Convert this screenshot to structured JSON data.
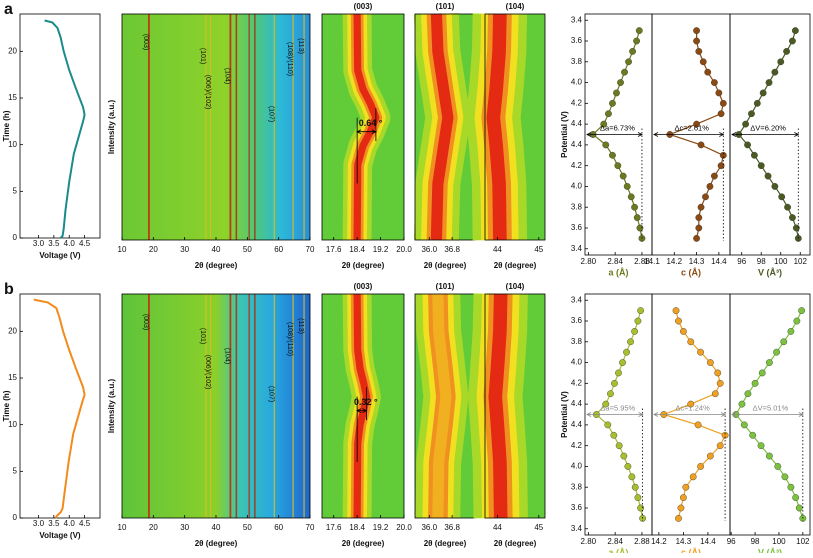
{
  "panel_labels": [
    "a",
    "b"
  ],
  "chart_data": [
    {
      "type": "line",
      "xlabel": "Voltage (V)",
      "ylabel": "Time (h)",
      "xlim": [
        2.4,
        5.0
      ],
      "ylim": [
        0,
        24
      ],
      "xticks": [
        {
          "value": 3,
          "label": "3.0"
        },
        3.5,
        {
          "value": 4,
          "label": "4.0"
        },
        4.5
      ],
      "yticks": [
        0,
        5,
        10,
        15,
        20
      ],
      "color": "#1b8a8a",
      "x": [
        3.72,
        3.78,
        3.82,
        3.88,
        4.0,
        4.15,
        4.32,
        4.45,
        4.5,
        4.45,
        4.22,
        4.0,
        3.82,
        3.72,
        3.62,
        3.45,
        3.2
      ],
      "values": [
        0,
        0.2,
        1,
        3,
        6,
        9,
        11,
        12.5,
        13.2,
        14,
        16,
        18,
        20,
        21.5,
        22.5,
        23.1,
        23.3
      ]
    },
    {
      "type": "heatmap",
      "xlabel": "2θ (degree)",
      "ylabel": "Intensity (a.u.)",
      "xlim": [
        10,
        70
      ],
      "xticks": [
        10,
        20,
        30,
        40,
        50,
        60,
        70
      ],
      "peaks": [
        {
          "label": "(003)",
          "x": 18.6
        },
        {
          "label": "(101)",
          "x": 36.8
        },
        {
          "label": "(006)/(102)",
          "x": 38.3
        },
        {
          "label": "(104)",
          "x": 44.6
        },
        {
          "label": "(107)",
          "x": 58.6
        },
        {
          "label": "(108)/(110)",
          "x": 64.6
        },
        {
          "label": "(113)",
          "x": 68.1
        }
      ]
    },
    {
      "type": "zoom",
      "title": "(003)",
      "xlabel": "2θ (degree)",
      "xlim": [
        17.2,
        20.0
      ],
      "xticks": [
        17.6,
        18.4,
        19.2,
        {
          "value": 20,
          "label": "20.0"
        }
      ],
      "ylim": [
        0,
        24
      ],
      "ridge_y": [
        0,
        8,
        10,
        11.5,
        13,
        14.5,
        16,
        18,
        24
      ],
      "ridge_x": [
        18.4,
        18.42,
        18.6,
        18.85,
        19.04,
        18.85,
        18.6,
        18.42,
        18.4
      ],
      "annotation": "0.64 °"
    },
    {
      "type": "zoom",
      "title": "(101)",
      "xlabel": "2θ (degree)",
      "xlim": [
        35.5,
        37.6
      ],
      "xticks": [
        {
          "value": 36,
          "label": "36.0"
        },
        36.8
      ],
      "ylim": [
        0,
        24
      ],
      "ridge_y": [
        0,
        6,
        10,
        13,
        16,
        20,
        24
      ],
      "ridge_x": [
        36.25,
        36.3,
        36.5,
        36.65,
        36.5,
        36.3,
        36.25
      ]
    },
    {
      "type": "zoom",
      "title": "(104)",
      "xlabel": "2θ (degree)",
      "xlim": [
        43.7,
        45.15
      ],
      "xticks": [
        44,
        45
      ],
      "ylim": [
        0,
        24
      ],
      "ridge_y": [
        0,
        6,
        10,
        13,
        16,
        20,
        24
      ],
      "ridge_x": [
        44.06,
        44.04,
        43.97,
        43.9,
        43.97,
        44.04,
        44.06
      ]
    },
    {
      "type": "lattice",
      "ylabel": "Potential (V)",
      "xlabel": "a (Å)",
      "xlim": [
        2.795,
        2.895
      ],
      "xticks": [
        {
          "value": 2.8,
          "label": "2.80"
        },
        2.84,
        2.88
      ],
      "ylim": [
        -0.3,
        11.3
      ],
      "yticks": [
        {
          "value": 11,
          "label": "3.4"
        },
        {
          "value": 10,
          "label": "3.6"
        },
        {
          "value": 9,
          "label": "3.8"
        },
        {
          "value": 8,
          "label": "4.0"
        },
        {
          "value": 7,
          "label": "4.2"
        },
        {
          "value": 6,
          "label": "4.4"
        },
        {
          "value": 5,
          "label": "4.4"
        },
        {
          "value": 4,
          "label": "4.2"
        },
        {
          "value": 3,
          "label": "4.0"
        },
        {
          "value": 2,
          "label": "3.8"
        },
        {
          "value": 1,
          "label": "3.6"
        },
        {
          "value": 0,
          "label": "3.4"
        }
      ],
      "color": "#6b7a1f",
      "annotation": "Δa=6.73%",
      "x": [
        2.876,
        2.872,
        2.866,
        2.86,
        2.854,
        2.848,
        2.842,
        2.836,
        2.83,
        2.823,
        2.807,
        2.826,
        2.836,
        2.844,
        2.852,
        2.858,
        2.864,
        2.869,
        2.873,
        2.877,
        2.88
      ],
      "values": [
        10.5,
        10,
        9.5,
        9,
        8.5,
        8,
        7.5,
        7,
        6.5,
        6,
        5.5,
        5,
        4.5,
        4,
        3.5,
        3,
        2.5,
        2,
        1.5,
        1,
        0.5
      ]
    },
    {
      "type": "lattice",
      "xlabel": "c (Å)",
      "xlim": [
        14.1,
        14.45
      ],
      "xticks": [
        14.1,
        14.2,
        14.3,
        14.4
      ],
      "ylim": [
        -0.3,
        11.3
      ],
      "color": "#8b4a12",
      "annotation": "Δc=2.61%",
      "x": [
        14.3,
        14.3,
        14.31,
        14.33,
        14.35,
        14.38,
        14.4,
        14.42,
        14.41,
        14.3,
        14.18,
        14.32,
        14.42,
        14.41,
        14.38,
        14.36,
        14.34,
        14.32,
        14.31,
        14.31,
        14.3
      ],
      "values": [
        10.5,
        10,
        9.5,
        9,
        8.5,
        8,
        7.5,
        7,
        6.5,
        6,
        5.5,
        5,
        4.5,
        4,
        3.5,
        3,
        2.5,
        2,
        1.5,
        1,
        0.5
      ]
    },
    {
      "type": "lattice",
      "xlabel": "V (Å³)",
      "xlim": [
        94.8,
        103
      ],
      "xticks": [
        96,
        98,
        100,
        102
      ],
      "ylim": [
        -0.3,
        11.3
      ],
      "color": "#4a5a22",
      "annotation": "ΔV=6.20%",
      "x": [
        101.5,
        101.2,
        100.6,
        100.0,
        99.4,
        98.8,
        98.2,
        97.6,
        97.0,
        96.4,
        95.7,
        96.6,
        97.3,
        98.0,
        98.7,
        99.4,
        100.1,
        100.7,
        101.2,
        101.6,
        101.8
      ],
      "values": [
        10.5,
        10,
        9.5,
        9,
        8.5,
        8,
        7.5,
        7,
        6.5,
        6,
        5.5,
        5,
        4.5,
        4,
        3.5,
        3,
        2.5,
        2,
        1.5,
        1,
        0.5
      ]
    },
    {
      "type": "line",
      "xlabel": "Voltage (V)",
      "ylabel": "Time (h)",
      "xlim": [
        2.4,
        5.0
      ],
      "ylim": [
        0,
        24
      ],
      "xticks": [
        {
          "value": 3,
          "label": "3.0"
        },
        3.5,
        {
          "value": 4,
          "label": "4.0"
        },
        4.5
      ],
      "yticks": [
        0,
        5,
        10,
        15,
        20
      ],
      "color": "#f28a1c",
      "x": [
        3.55,
        3.62,
        3.72,
        3.78,
        3.86,
        3.98,
        4.13,
        4.3,
        4.43,
        4.5,
        4.45,
        4.22,
        4.0,
        3.8,
        3.68,
        3.58,
        3.3,
        2.85
      ],
      "values": [
        0,
        0.3,
        0.6,
        1,
        3,
        6,
        9,
        11,
        12.5,
        13.2,
        14,
        16,
        18,
        20,
        21.5,
        22.5,
        23.1,
        23.4
      ]
    },
    {
      "type": "heatmap",
      "xlabel": "2θ (degree)",
      "ylabel": "Intensity (a.u.)",
      "xlim": [
        10,
        70
      ],
      "xticks": [
        10,
        20,
        30,
        40,
        50,
        60,
        70
      ],
      "peaks": [
        {
          "label": "(003)",
          "x": 18.6
        },
        {
          "label": "(101)",
          "x": 36.8
        },
        {
          "label": "(006)/(102)",
          "x": 38.3
        },
        {
          "label": "(104)",
          "x": 44.6
        },
        {
          "label": "(107)",
          "x": 58.6
        },
        {
          "label": "(108)/(110)",
          "x": 64.6
        },
        {
          "label": "(113)",
          "x": 68.1
        }
      ]
    },
    {
      "type": "zoom",
      "title": "(003)",
      "xlabel": "2θ (degree)",
      "xlim": [
        17.2,
        20.0
      ],
      "xticks": [
        17.6,
        18.4,
        19.2,
        {
          "value": 20,
          "label": "20.0"
        }
      ],
      "ylim": [
        0,
        24
      ],
      "ridge_y": [
        0,
        8,
        10,
        11.5,
        13,
        14.5,
        16,
        18,
        24
      ],
      "ridge_x": [
        18.4,
        18.42,
        18.5,
        18.62,
        18.72,
        18.62,
        18.5,
        18.42,
        18.4
      ],
      "annotation": "0.32 °"
    },
    {
      "type": "zoom",
      "title": "(101)",
      "xlabel": "2θ (degree)",
      "xlim": [
        35.5,
        37.6
      ],
      "xticks": [
        {
          "value": 36,
          "label": "36.0"
        },
        36.8
      ],
      "ylim": [
        0,
        24
      ],
      "ridge_y": [
        0,
        6,
        10,
        13,
        16,
        20,
        24
      ],
      "ridge_x": [
        36.3,
        36.33,
        36.48,
        36.58,
        36.48,
        36.33,
        36.3
      ]
    },
    {
      "type": "zoom",
      "title": "(104)",
      "xlabel": "2θ (degree)",
      "xlim": [
        43.7,
        45.15
      ],
      "xticks": [
        44,
        45
      ],
      "ylim": [
        0,
        24
      ],
      "ridge_y": [
        0,
        6,
        10,
        13,
        16,
        20,
        24
      ],
      "ridge_x": [
        44.08,
        44.06,
        44.0,
        43.95,
        44.0,
        44.06,
        44.08
      ]
    },
    {
      "type": "lattice",
      "ylabel": "Potential (V)",
      "xlabel": "a (Å)",
      "xlim": [
        2.795,
        2.895
      ],
      "xticks": [
        {
          "value": 2.8,
          "label": "2.80"
        },
        2.84,
        2.88
      ],
      "ylim": [
        -0.3,
        11.3
      ],
      "yticks": [
        {
          "value": 11,
          "label": "3.4"
        },
        {
          "value": 10,
          "label": "3.6"
        },
        {
          "value": 9,
          "label": "3.8"
        },
        {
          "value": 8,
          "label": "4.0"
        },
        {
          "value": 7,
          "label": "4.2"
        },
        {
          "value": 6,
          "label": "4.4"
        },
        {
          "value": 5,
          "label": "4.4"
        },
        {
          "value": 4,
          "label": "4.2"
        },
        {
          "value": 3,
          "label": "4.0"
        },
        {
          "value": 2,
          "label": "3.8"
        },
        {
          "value": 1,
          "label": "3.6"
        },
        {
          "value": 0,
          "label": "3.4"
        }
      ],
      "color": "#a6bf2e",
      "annotation": "Δa=5.95%",
      "x": [
        2.878,
        2.874,
        2.869,
        2.863,
        2.857,
        2.851,
        2.845,
        2.839,
        2.833,
        2.826,
        2.812,
        2.829,
        2.838,
        2.846,
        2.853,
        2.859,
        2.865,
        2.87,
        2.874,
        2.878,
        2.881
      ],
      "values": [
        10.5,
        10,
        9.5,
        9,
        8.5,
        8,
        7.5,
        7,
        6.5,
        6,
        5.5,
        5,
        4.5,
        4,
        3.5,
        3,
        2.5,
        2,
        1.5,
        1,
        0.5
      ]
    },
    {
      "type": "lattice",
      "xlabel": "c (Å)",
      "xlim": [
        14.172,
        14.49
      ],
      "xticks": [
        14.2,
        14.3,
        14.4
      ],
      "ylim": [
        -0.3,
        11.3
      ],
      "color": "#f0a020",
      "annotation": "Δc=1.24%",
      "x": [
        14.27,
        14.28,
        14.3,
        14.33,
        14.37,
        14.41,
        14.44,
        14.45,
        14.43,
        14.33,
        14.22,
        14.36,
        14.47,
        14.45,
        14.41,
        14.37,
        14.34,
        14.31,
        14.3,
        14.29,
        14.28
      ],
      "values": [
        10.5,
        10,
        9.5,
        9,
        8.5,
        8,
        7.5,
        7,
        6.5,
        6,
        5.5,
        5,
        4.5,
        4,
        3.5,
        3,
        2.5,
        2,
        1.5,
        1,
        0.5
      ]
    },
    {
      "type": "lattice",
      "xlabel": "V (Å³)",
      "xlim": [
        95.9,
        102.6
      ],
      "xticks": [
        96,
        98,
        100,
        102
      ],
      "ylim": [
        -0.3,
        11.3
      ],
      "color": "#7cc23e",
      "annotation": "ΔV=5.01%",
      "x": [
        101.9,
        101.5,
        101.0,
        100.4,
        99.8,
        99.2,
        98.6,
        98.0,
        97.4,
        96.9,
        96.4,
        97.1,
        97.8,
        98.5,
        99.2,
        99.9,
        100.5,
        101.0,
        101.4,
        101.7,
        102.0
      ],
      "values": [
        10.5,
        10,
        9.5,
        9,
        8.5,
        8,
        7.5,
        7,
        6.5,
        6,
        5.5,
        5,
        4.5,
        4,
        3.5,
        3,
        2.5,
        2,
        1.5,
        1,
        0.5
      ]
    }
  ]
}
